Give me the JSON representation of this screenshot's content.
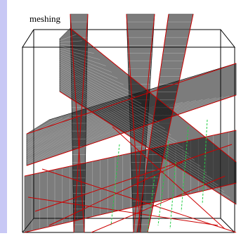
{
  "window": {
    "title": "meshing"
  },
  "colors": {
    "side_panel": "#c8c8f5",
    "background": "#ffffff",
    "bounding_box": "#000000",
    "mesh_lines": "#000000",
    "fracture_edges": "#cc0000",
    "intersection_lines": "#22cc44",
    "surface_highlight": "#2a7a9a"
  }
}
